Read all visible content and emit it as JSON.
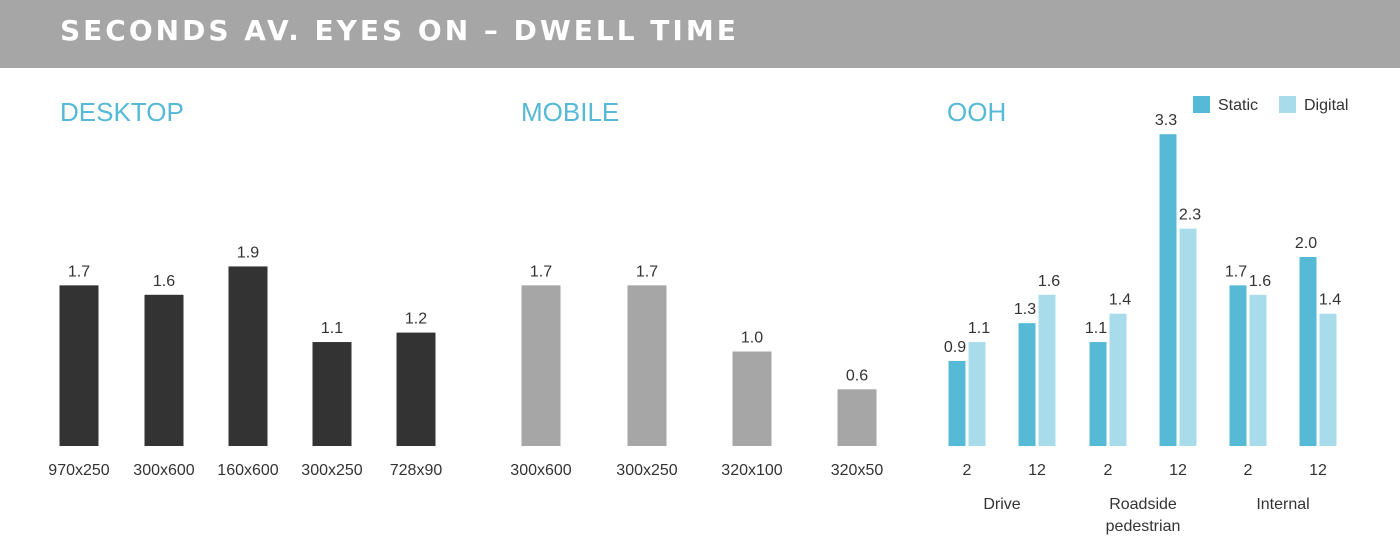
{
  "header": {
    "title": "SECONDS AV. EYES ON – DWELL TIME"
  },
  "colors": {
    "header_bg": "#a6a6a6",
    "panel_title": "#56b9d6",
    "desktop_bar": "#333333",
    "mobile_bar": "#a6a6a6",
    "static": "#56b9d6",
    "digital": "#a9dcea",
    "text": "#333333"
  },
  "legend": {
    "static_label": "Static",
    "digital_label": "Digital"
  },
  "chart_data": [
    {
      "type": "bar",
      "title": "DESKTOP",
      "categories": [
        "970x250",
        "300x600",
        "160x600",
        "300x250",
        "728x90"
      ],
      "values": [
        1.7,
        1.6,
        1.9,
        1.1,
        1.2
      ],
      "value_labels": [
        "1.7",
        "1.6",
        "1.9",
        "1.1",
        "1.2"
      ],
      "xlabel": "",
      "ylabel": "",
      "ylim": [
        0,
        3.5
      ],
      "grid": false
    },
    {
      "type": "bar",
      "title": "MOBILE",
      "categories": [
        "300x600",
        "300x250",
        "320x100",
        "320x50"
      ],
      "values": [
        1.7,
        1.7,
        1.0,
        0.6
      ],
      "value_labels": [
        "1.7",
        "1.7",
        "1.0",
        "0.6"
      ],
      "xlabel": "",
      "ylabel": "",
      "ylim": [
        0,
        3.5
      ],
      "grid": false
    },
    {
      "type": "bar",
      "title": "OOH",
      "groups": [
        {
          "name": "Drive",
          "name_lines": [
            "Drive"
          ],
          "categories": [
            "2",
            "12"
          ]
        },
        {
          "name": "Roadside pedestrian",
          "name_lines": [
            "Roadside",
            "pedestrian"
          ],
          "categories": [
            "2",
            "12"
          ]
        },
        {
          "name": "Internal",
          "name_lines": [
            "Internal"
          ],
          "categories": [
            "2",
            "12"
          ]
        }
      ],
      "series": [
        {
          "name": "Static",
          "values": [
            0.9,
            1.3,
            1.1,
            3.3,
            1.7,
            2.0
          ],
          "value_labels": [
            "0.9",
            "1.3",
            "1.1",
            "3.3",
            "1.7",
            "2.0"
          ]
        },
        {
          "name": "Digital",
          "values": [
            1.1,
            1.6,
            1.4,
            2.3,
            1.6,
            1.4
          ],
          "value_labels": [
            "1.1",
            "1.6",
            "1.4",
            "2.3",
            "1.6",
            "1.4"
          ]
        }
      ],
      "xlabel": "",
      "ylabel": "",
      "ylim": [
        0,
        3.5
      ],
      "legend_position": "top-right",
      "grid": false
    }
  ]
}
